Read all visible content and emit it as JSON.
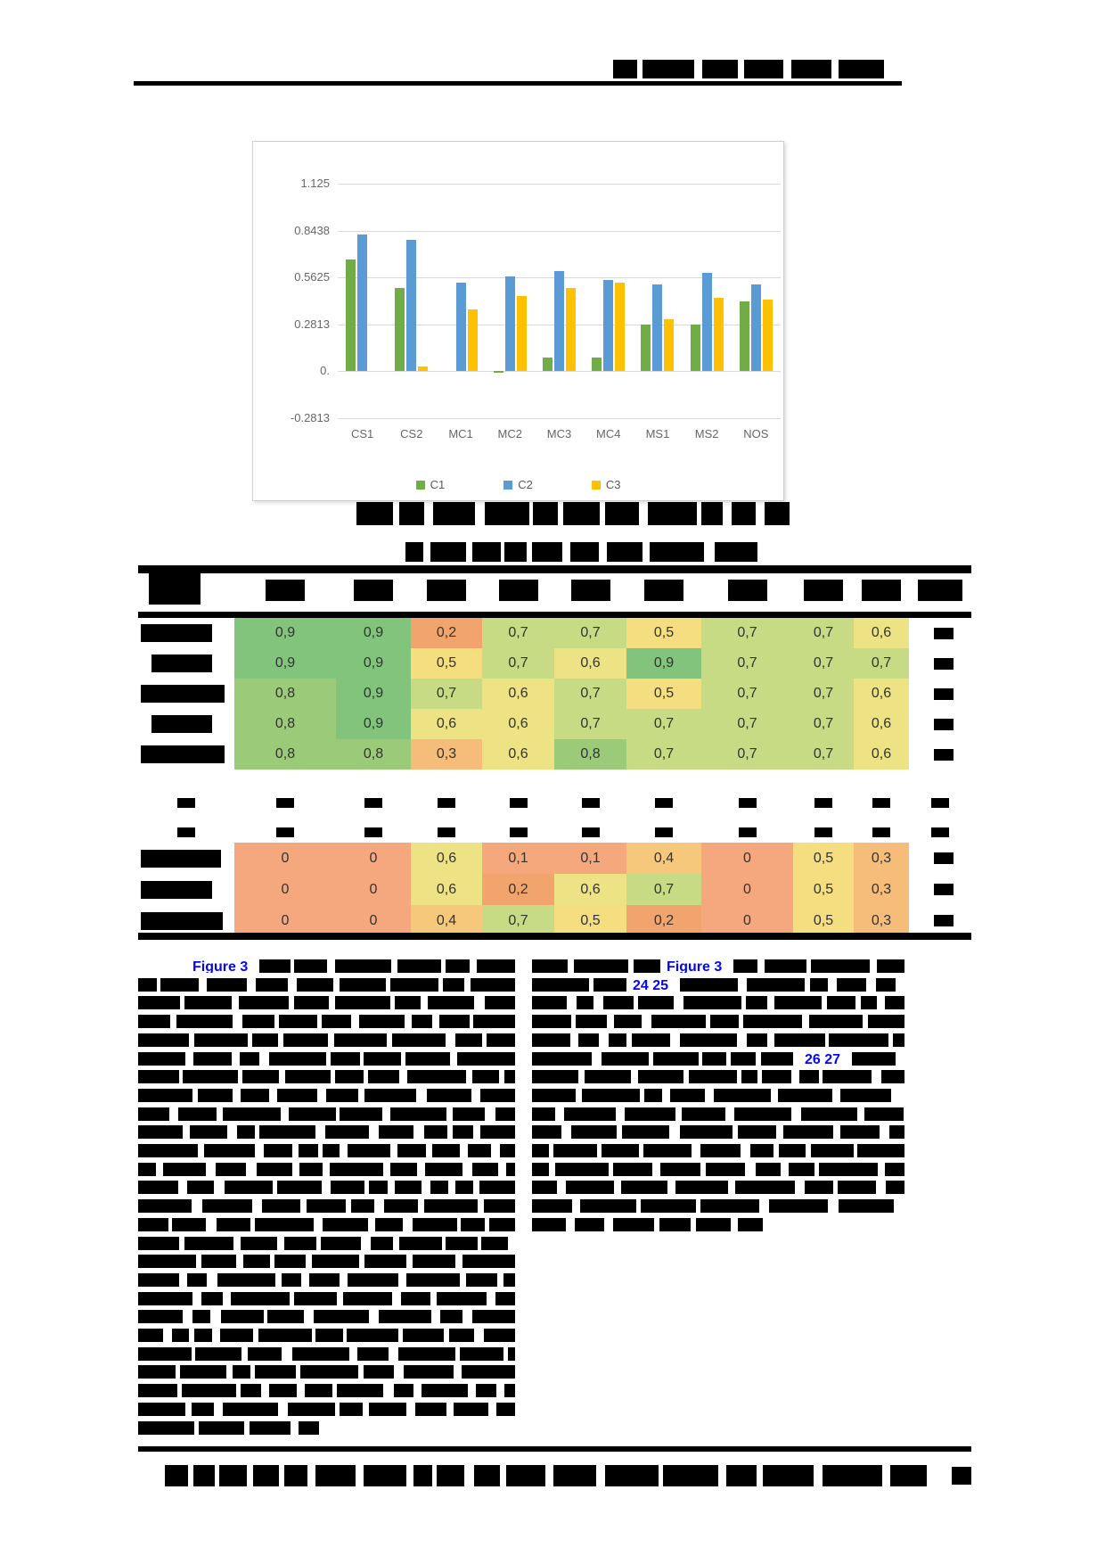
{
  "document": {
    "header_redacted": true,
    "figure_caption_redacted": true,
    "table_title_redacted": true,
    "body_text_redacted": true,
    "footer_redacted": true,
    "page_number_redacted": true
  },
  "links": {
    "figure_ref_left": "Figure 3",
    "figure_ref_right": "Figure 3",
    "citation_a": "24 25",
    "citation_b": "26 27"
  },
  "chart_data": [
    {
      "type": "bar",
      "title": "",
      "xlabel": "",
      "ylabel": "",
      "categories": [
        "CS1",
        "CS2",
        "MC1",
        "MC2",
        "MC3",
        "MC4",
        "MS1",
        "MS2",
        "NOS"
      ],
      "series": [
        {
          "name": "C1",
          "color": "#70AD47",
          "values": [
            0.67,
            0.5,
            0,
            -0.01,
            0.08,
            0.08,
            0.28,
            0.28,
            0.42
          ]
        },
        {
          "name": "C2",
          "color": "#5B9BD5",
          "values": [
            0.82,
            0.79,
            0.53,
            0.57,
            0.6,
            0.55,
            0.52,
            0.59,
            0.52
          ]
        },
        {
          "name": "C3",
          "color": "#FFC000",
          "values": [
            0,
            0.03,
            0.37,
            0.45,
            0.5,
            0.53,
            0.31,
            0.44,
            0.43
          ]
        }
      ],
      "y_ticks": [
        "1.125",
        "0.8438",
        "0.5625",
        "0.2813",
        "0.",
        "-0.2813"
      ],
      "y_tick_values": [
        1.125,
        0.8438,
        0.5625,
        0.2813,
        0,
        -0.2813
      ],
      "ylim": [
        -0.2813,
        1.125
      ],
      "grid": true,
      "legend_position": "bottom"
    },
    {
      "type": "heatmap",
      "column_headers_redacted": true,
      "row_labels_redacted": true,
      "upper_rows": [
        [
          "0,9",
          "0,9",
          "0,2",
          "0,7",
          "0,7",
          "0,5",
          "0,7",
          "0,7",
          "0,6"
        ],
        [
          "0,9",
          "0,9",
          "0,5",
          "0,7",
          "0,6",
          "0,9",
          "0,7",
          "0,7",
          "0,7"
        ],
        [
          "0,8",
          "0,9",
          "0,7",
          "0,6",
          "0,7",
          "0,5",
          "0,7",
          "0,7",
          "0,6"
        ],
        [
          "0,8",
          "0,9",
          "0,6",
          "0,6",
          "0,7",
          "0,7",
          "0,7",
          "0,7",
          "0,6"
        ],
        [
          "0,8",
          "0,8",
          "0,3",
          "0,6",
          "0,8",
          "0,7",
          "0,7",
          "0,7",
          "0,6"
        ]
      ],
      "lower_rows": [
        [
          "0",
          "0",
          "0,6",
          "0,1",
          "0,1",
          "0,4",
          "0",
          "0,5",
          "0,3"
        ],
        [
          "0",
          "0",
          "0,6",
          "0,2",
          "0,6",
          "0,7",
          "0",
          "0,5",
          "0,3"
        ],
        [
          "0",
          "0",
          "0,4",
          "0,7",
          "0,5",
          "0,2",
          "0",
          "0,5",
          "0,3"
        ]
      ],
      "value_colors": {
        "0": "#F5A87E",
        "0,1": "#F5A87B",
        "0,2": "#F1A46B",
        "0,3": "#F6BC79",
        "0,4": "#F6C87C",
        "0,5": "#F4DE80",
        "0,6": "#EEE384",
        "0,7": "#C7DA84",
        "0,8": "#9BCA78",
        "0,9": "#82C47B"
      },
      "text_color": "#333333"
    }
  ]
}
